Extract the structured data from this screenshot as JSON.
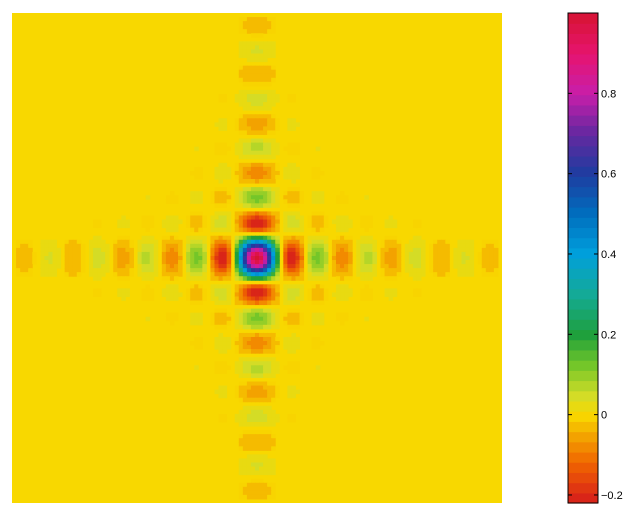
{
  "chart_data": {
    "type": "heatmap",
    "title": "",
    "xlabel": "",
    "ylabel": "",
    "function": "sinc(x) * sinc(y)",
    "x_range": [
      -10,
      10
    ],
    "y_range": [
      -10,
      10
    ],
    "peak_value": 1.0,
    "background_value": 0.0,
    "colormap": "hsv-like (red at -0.2 -> orange -> yellow at 0 -> green -> cyan -> blue -> purple -> magenta -> red at 1.0)",
    "colorbar": {
      "range": [
        -0.22,
        1.0
      ],
      "ticks": [
        {
          "value": -0.2,
          "label": "−0.2"
        },
        {
          "value": 0,
          "label": "0"
        },
        {
          "value": 0.2,
          "label": "0.2"
        },
        {
          "value": 0.4,
          "label": "0.4"
        },
        {
          "value": 0.6,
          "label": "0.6"
        },
        {
          "value": 0.8,
          "label": "0.8"
        }
      ],
      "levels": 48
    },
    "grid": false
  }
}
